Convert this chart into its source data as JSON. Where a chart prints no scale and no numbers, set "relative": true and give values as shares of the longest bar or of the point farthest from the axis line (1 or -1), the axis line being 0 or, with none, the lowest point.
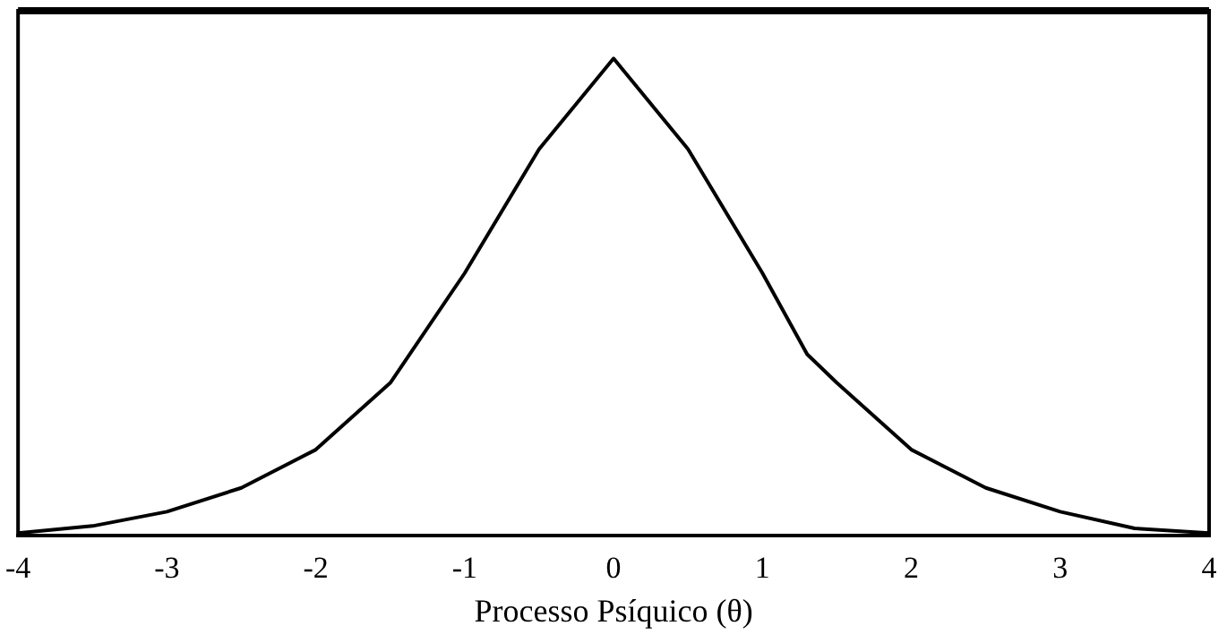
{
  "chart_data": {
    "type": "line",
    "relative": true,
    "xlabel": "Processo Psíquico (θ)",
    "x": [
      -4,
      -3.5,
      -3,
      -2.5,
      -2,
      -1.5,
      -1,
      -0.5,
      0,
      0.5,
      1,
      1.3,
      1.5,
      2,
      2.5,
      3,
      3.5,
      4
    ],
    "series": [
      {
        "color": "#000000",
        "values": [
          0.005,
          0.02,
          0.05,
          0.1,
          0.18,
          0.32,
          0.55,
          0.81,
          1,
          0.81,
          0.55,
          0.38,
          0.32,
          0.18,
          0.1,
          0.05,
          0.015,
          0.005
        ]
      }
    ],
    "xlim": [
      -4,
      4
    ],
    "xticks": [
      -4,
      -3,
      -2,
      -1,
      0,
      1,
      2,
      3,
      4
    ],
    "grid": false,
    "legend": false,
    "marker": "none",
    "line_style": "solid"
  }
}
